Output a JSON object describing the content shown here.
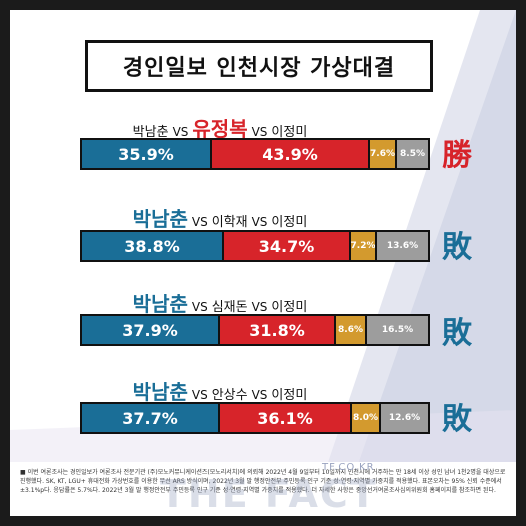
{
  "title": "경인일보 인천시장 가상대결",
  "colors": {
    "park": "#1a6e97",
    "rival": "#d7242a",
    "lee": "#d39a2e",
    "other": "#9d9d9d",
    "win": "#d7242a",
    "lose": "#1a6e97",
    "background_shape": "#cdd3e3"
  },
  "matchups": [
    {
      "c1": "박남춘",
      "c2": "유정복",
      "c3": "이정미",
      "vs": "VS",
      "highlight": "c2",
      "result": "勝",
      "result_color": "#d7242a"
    },
    {
      "c1": "박남춘",
      "c2": "이학재",
      "c3": "이정미",
      "vs": "VS",
      "highlight": "c1",
      "result": "敗",
      "result_color": "#1a6e97"
    },
    {
      "c1": "박남춘",
      "c2": "심재돈",
      "c3": "이정미",
      "vs": "VS",
      "highlight": "c1",
      "result": "敗",
      "result_color": "#1a6e97"
    },
    {
      "c1": "박남춘",
      "c2": "안상수",
      "c3": "이정미",
      "vs": "VS",
      "highlight": "c1",
      "result": "敗",
      "result_color": "#1a6e97"
    }
  ],
  "chart_data": {
    "type": "bar",
    "categories": [
      "박남춘 VS 유정복 VS 이정미",
      "박남춘 VS 이학재 VS 이정미",
      "박남춘 VS 심재돈 VS 이정미",
      "박남춘 VS 안상수 VS 이정미"
    ],
    "series": [
      {
        "values": [
          35.9,
          38.8,
          37.9,
          37.7
        ]
      },
      {
        "values": [
          43.9,
          34.7,
          31.8,
          36.1
        ]
      },
      {
        "values": [
          7.6,
          7.2,
          8.6,
          8.0
        ]
      },
      {
        "values": [
          8.5,
          13.6,
          16.5,
          12.6
        ]
      }
    ],
    "labels": [
      [
        "35.9%",
        "43.9%",
        "7.6%",
        "8.5%"
      ],
      [
        "38.8%",
        "34.7%",
        "7.2%",
        "13.6%"
      ],
      [
        "37.9%",
        "31.8%",
        "8.6%",
        "16.5%"
      ],
      [
        "37.7%",
        "36.1%",
        "8.0%",
        "12.6%"
      ]
    ],
    "stacked": true,
    "orientation": "horizontal"
  },
  "footnote": "■ 이번 여론조사는 경인일보가 여론조사 전문기관 (주)모노커뮤니케이션즈(모노리서치)에 의뢰해 2022년 4월 9일부터 10일까지 인천시에 거주하는 만 18세 이상 성인 남녀 1천2명을 대상으로 진행했다. SK, KT, LGU+ 휴대전화 가상번호를 이용한 무선 ARS 방식이며, 2022년 3월 말 행정안전부 주민등록 인구 기준 성·연령·지역별 가중치를 적용했다. 표본오차는 95% 신뢰 수준에서 ±3.1%p다. 응답률은 5.7%다. 2022년 3월 말 행정안전부 주민등록 인구 기준 성·연령·지역별 가중치를 적용했다. 더 자세한 사항은 중앙선거여론조사심의위원회 홈페이지를 참조하면 된다.",
  "watermark": {
    "url": "TF.CO.KR",
    "brand": "THE FACT"
  }
}
